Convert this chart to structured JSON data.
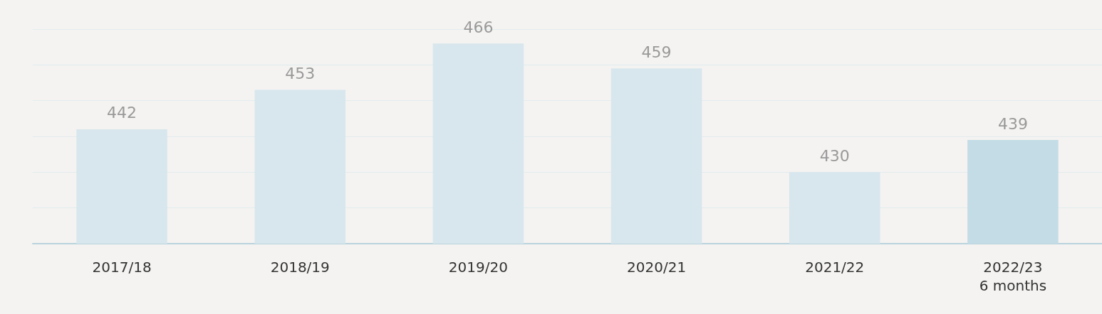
{
  "chart_data": {
    "type": "bar",
    "categories": [
      "2017/18",
      "2018/19",
      "2019/20",
      "2020/21",
      "2021/22",
      "2022/23\n6 months"
    ],
    "values": [
      442,
      453,
      466,
      459,
      430,
      439
    ],
    "colors": [
      "#d8e7ed",
      "#d8e7ed",
      "#d8e7ed",
      "#d8e7ed",
      "#d8e7ed",
      "#c4dce6"
    ],
    "data_labels": true,
    "ylim": [
      410,
      470
    ],
    "yticks": [
      {
        "value": 410,
        "label": null
      },
      {
        "value": 420,
        "label": null
      },
      {
        "value": 430,
        "label": null
      },
      {
        "value": 440,
        "label": null
      },
      {
        "value": 450,
        "label": null
      },
      {
        "value": 460,
        "label": null
      },
      {
        "value": 470,
        "label": null
      }
    ],
    "grid": "y",
    "tick_labels": "x"
  }
}
